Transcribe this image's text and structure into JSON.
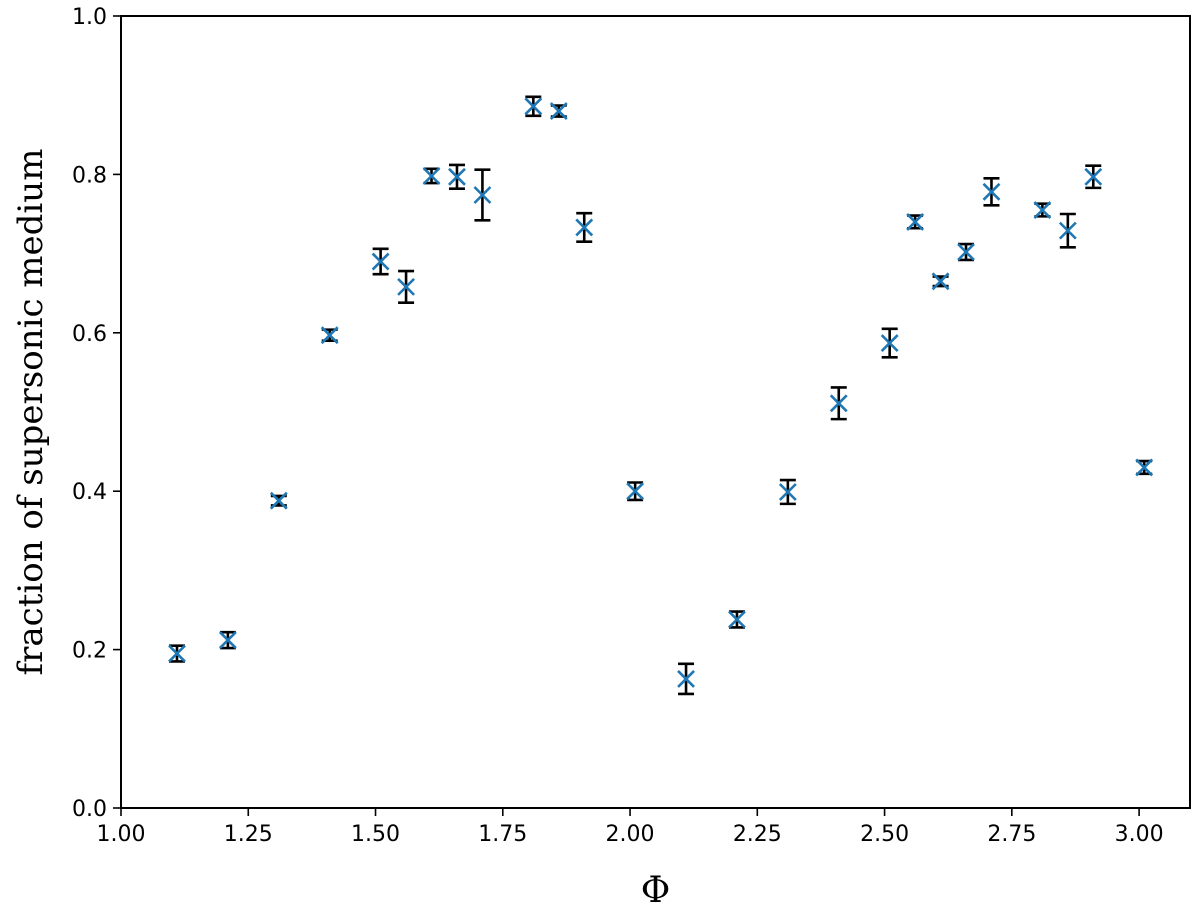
{
  "chart_data": {
    "type": "scatter",
    "title": "",
    "xlabel": "Φ",
    "ylabel": "fraction of supersonic medium",
    "xlim": [
      1.0,
      3.1
    ],
    "ylim": [
      0.0,
      1.0
    ],
    "x_ticks": [
      1.0,
      1.25,
      1.5,
      1.75,
      2.0,
      2.25,
      2.5,
      2.75,
      3.0
    ],
    "x_tick_labels": [
      "1.00",
      "1.25",
      "1.50",
      "1.75",
      "2.00",
      "2.25",
      "2.50",
      "2.75",
      "3.00"
    ],
    "y_ticks": [
      0.0,
      0.2,
      0.4,
      0.6,
      0.8,
      1.0
    ],
    "y_tick_labels": [
      "0.0",
      "0.2",
      "0.4",
      "0.6",
      "0.8",
      "1.0"
    ],
    "grid": false,
    "legend": "none",
    "marker": "x",
    "marker_color": "#1f77b4",
    "errorbar_color": "#000000",
    "points": [
      {
        "x": 1.11,
        "y": 0.195,
        "yerr": 0.01
      },
      {
        "x": 1.21,
        "y": 0.212,
        "yerr": 0.01
      },
      {
        "x": 1.31,
        "y": 0.388,
        "yerr": 0.006
      },
      {
        "x": 1.41,
        "y": 0.597,
        "yerr": 0.007
      },
      {
        "x": 1.51,
        "y": 0.69,
        "yerr": 0.016
      },
      {
        "x": 1.56,
        "y": 0.658,
        "yerr": 0.02
      },
      {
        "x": 1.61,
        "y": 0.798,
        "yerr": 0.009
      },
      {
        "x": 1.66,
        "y": 0.797,
        "yerr": 0.015
      },
      {
        "x": 1.71,
        "y": 0.774,
        "yerr": 0.032
      },
      {
        "x": 1.81,
        "y": 0.886,
        "yerr": 0.012
      },
      {
        "x": 1.86,
        "y": 0.88,
        "yerr": 0.007
      },
      {
        "x": 1.91,
        "y": 0.733,
        "yerr": 0.018
      },
      {
        "x": 2.01,
        "y": 0.4,
        "yerr": 0.011
      },
      {
        "x": 2.11,
        "y": 0.163,
        "yerr": 0.019
      },
      {
        "x": 2.21,
        "y": 0.238,
        "yerr": 0.01
      },
      {
        "x": 2.31,
        "y": 0.399,
        "yerr": 0.015
      },
      {
        "x": 2.41,
        "y": 0.511,
        "yerr": 0.02
      },
      {
        "x": 2.51,
        "y": 0.587,
        "yerr": 0.018
      },
      {
        "x": 2.56,
        "y": 0.74,
        "yerr": 0.008
      },
      {
        "x": 2.61,
        "y": 0.665,
        "yerr": 0.006
      },
      {
        "x": 2.66,
        "y": 0.702,
        "yerr": 0.01
      },
      {
        "x": 2.71,
        "y": 0.778,
        "yerr": 0.017
      },
      {
        "x": 2.81,
        "y": 0.755,
        "yerr": 0.008
      },
      {
        "x": 2.86,
        "y": 0.729,
        "yerr": 0.021
      },
      {
        "x": 2.91,
        "y": 0.797,
        "yerr": 0.014
      },
      {
        "x": 3.01,
        "y": 0.43,
        "yerr": 0.008
      }
    ]
  }
}
